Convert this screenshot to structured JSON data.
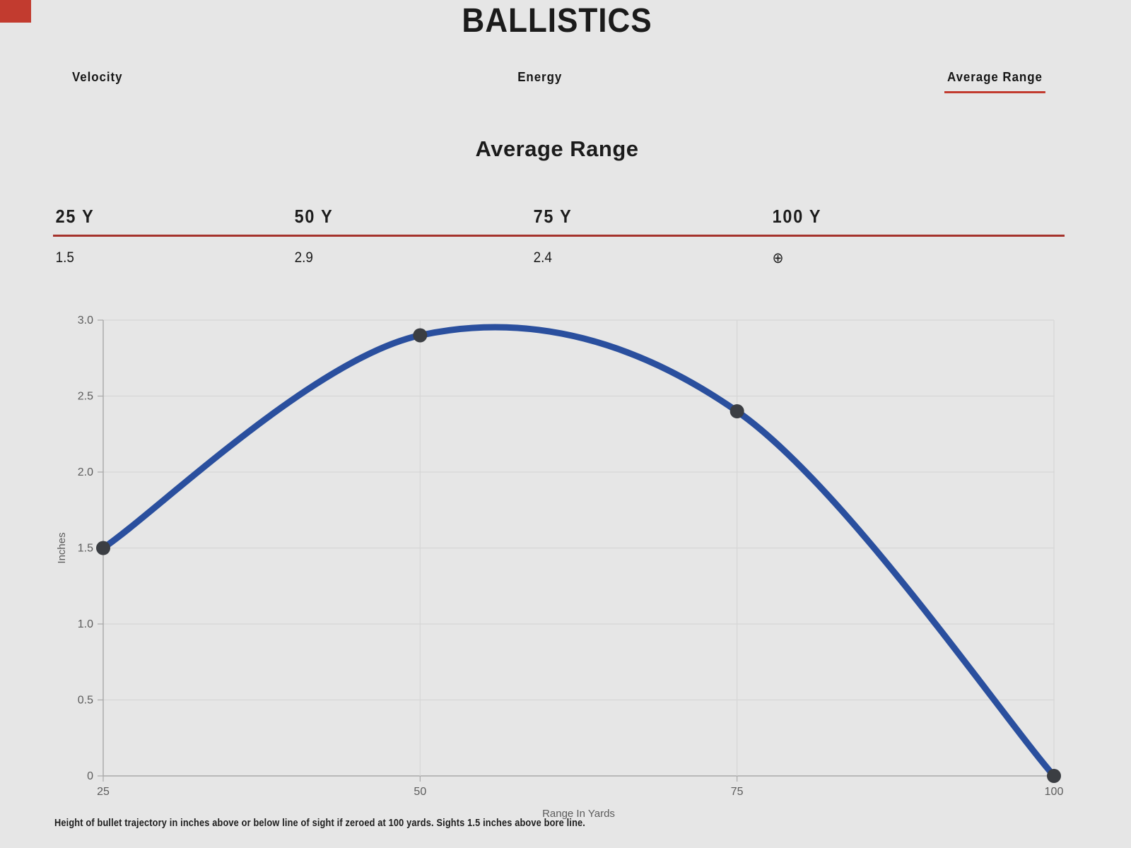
{
  "page": {
    "title": "BALLISTICS",
    "footer": "Height of bullet trajectory in inches above or below line of sight if zeroed at 100 yards. Sights 1.5 inches above bore line."
  },
  "tabs": [
    {
      "label": "Velocity",
      "active": false
    },
    {
      "label": "Energy",
      "active": false
    },
    {
      "label": "Average Range",
      "active": true
    }
  ],
  "section": {
    "heading": "Average Range"
  },
  "table": {
    "columns": [
      "25 Y",
      "50 Y",
      "75 Y",
      "100 Y"
    ],
    "values": [
      "1.5",
      "2.9",
      "2.4",
      "⊕"
    ],
    "zero_symbol": "⊕"
  },
  "colors": {
    "background": "#e6e6e6",
    "accent_red": "#c23b2f",
    "rule_red": "#a5322c",
    "curve_blue": "#2a4f9e",
    "marker": "#3b3e43",
    "grid_line": "#d6d6d6",
    "axis_line": "#a8a8a8",
    "tick_text": "#5c5c5c"
  },
  "chart_data": {
    "type": "line",
    "title": "Average Range",
    "x": [
      25,
      50,
      75,
      100
    ],
    "values": [
      1.5,
      2.9,
      2.4,
      0
    ],
    "series": [
      {
        "name": "Average Range",
        "x": [
          25,
          50,
          75,
          100
        ],
        "values": [
          1.5,
          2.9,
          2.4,
          0
        ]
      }
    ],
    "xlabel": "Range In Yards",
    "ylabel": "Inches",
    "xlim": [
      25,
      100
    ],
    "ylim": [
      0,
      3.0
    ],
    "x_ticks": [
      25,
      50,
      75,
      100
    ],
    "y_ticks": [
      0,
      0.5,
      1.0,
      1.5,
      2.0,
      2.5,
      3.0
    ],
    "y_tick_labels": [
      "0",
      "0.5",
      "1.0",
      "1.5",
      "2.0",
      "2.5",
      "3.0"
    ],
    "grid": true,
    "smooth": true,
    "legend": "none"
  }
}
